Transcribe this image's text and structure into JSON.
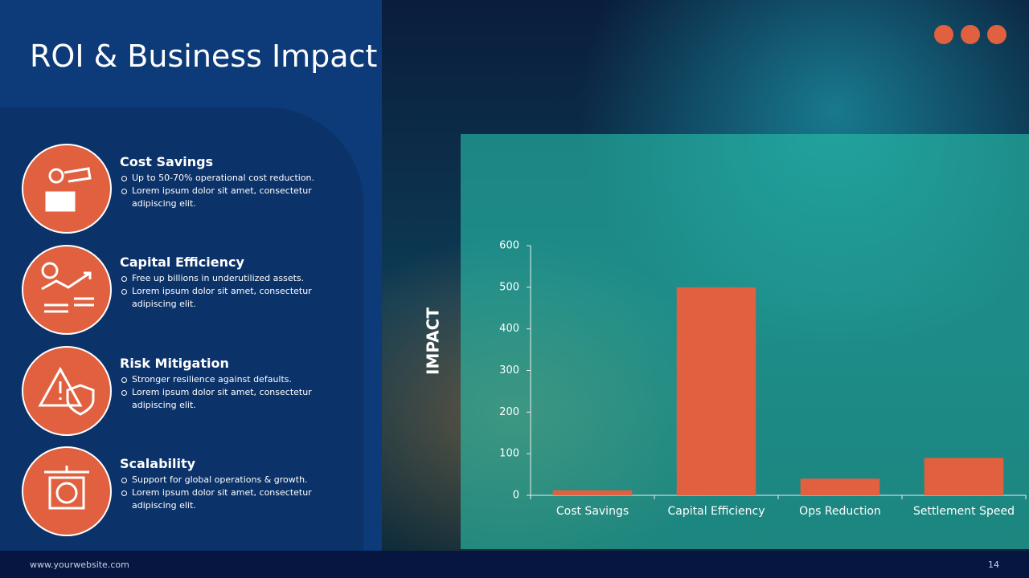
{
  "header": {
    "title": "ROI & Business Impact"
  },
  "items": [
    {
      "title": "Cost Savings",
      "bullets": [
        "Up to 50-70% operational cost reduction.",
        "Lorem ipsum dolor sit amet, consectetur adipiscing elit."
      ]
    },
    {
      "title": "Capital Efficiency",
      "bullets": [
        "Free up billions in underutilized assets.",
        "Lorem ipsum dolor sit amet, consectetur adipiscing elit."
      ]
    },
    {
      "title": "Risk Mitigation",
      "bullets": [
        "Stronger resilience against defaults.",
        "Lorem ipsum dolor sit amet, consectetur adipiscing elit."
      ]
    },
    {
      "title": "Scalability",
      "bullets": [
        "Support for global operations & growth.",
        "Lorem ipsum dolor sit amet, consectetur adipiscing elit."
      ]
    }
  ],
  "chart_data": {
    "type": "bar",
    "y_label": "IMPACT",
    "categories": [
      "Cost Savings",
      "Capital Efficiency",
      "Ops Reduction",
      "Settlement Speed"
    ],
    "values": [
      12,
      500,
      40,
      90
    ],
    "color": "#e0603f",
    "ylim": [
      0,
      600
    ],
    "yticks": [
      0,
      100,
      200,
      300,
      400,
      500,
      600
    ]
  },
  "footer": {
    "website": "www.yourwebsite.com",
    "page_number": "14"
  }
}
